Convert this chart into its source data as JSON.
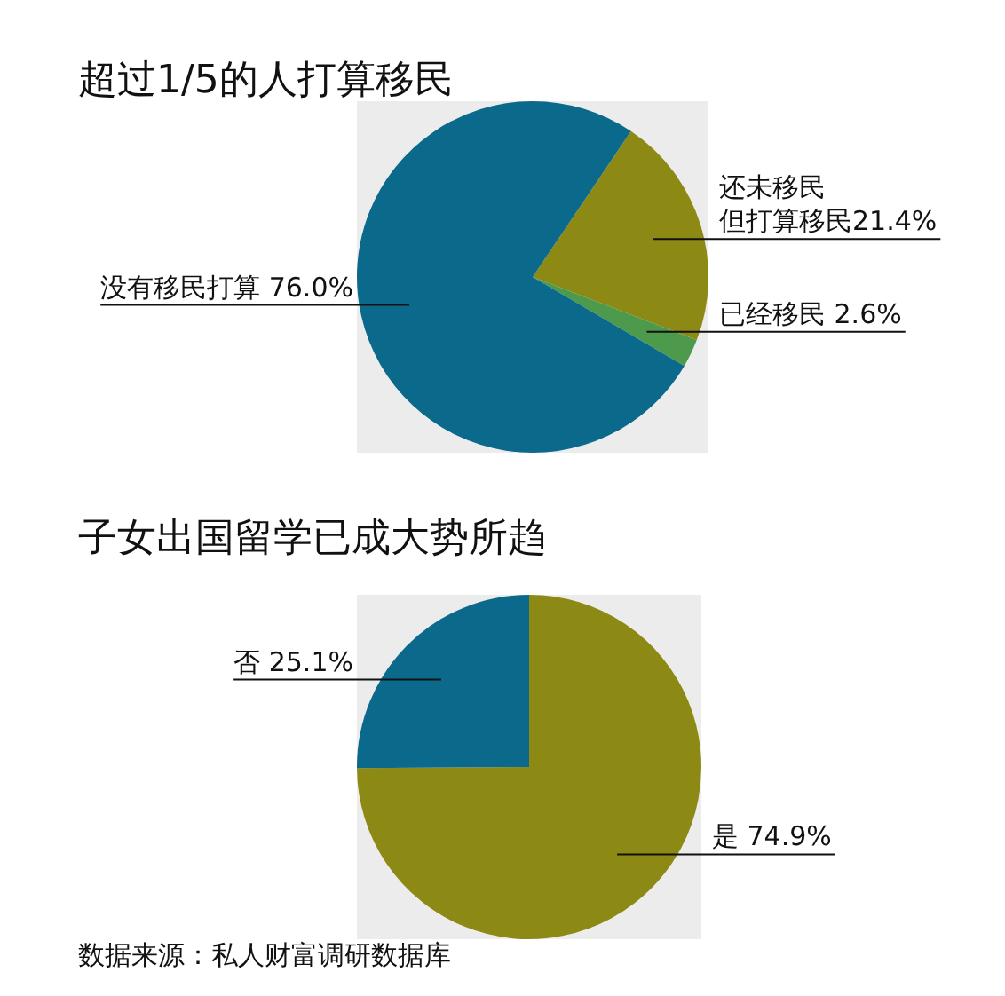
{
  "chart_data": [
    {
      "type": "pie",
      "title": "超过1/5的人打算移民",
      "categories": [
        "还未移民但打算移民",
        "已经移民",
        "没有移民打算"
      ],
      "values": [
        21.4,
        2.6,
        76.0
      ],
      "value_labels": [
        "21.4%",
        "2.6%",
        "76.0%"
      ],
      "colors": [
        "#8c8a14",
        "#4e9a4c",
        "#0b6a8c"
      ],
      "legend": false
    },
    {
      "type": "pie",
      "title": "子女出国留学已成大势所趋",
      "categories": [
        "是",
        "否"
      ],
      "values": [
        74.9,
        25.1
      ],
      "value_labels": [
        "74.9%",
        "25.1%"
      ],
      "colors": [
        "#8c8a14",
        "#0b6a8c"
      ],
      "legend": false,
      "annotations": [
        "数据来源：私人财富调研数据库"
      ]
    }
  ]
}
